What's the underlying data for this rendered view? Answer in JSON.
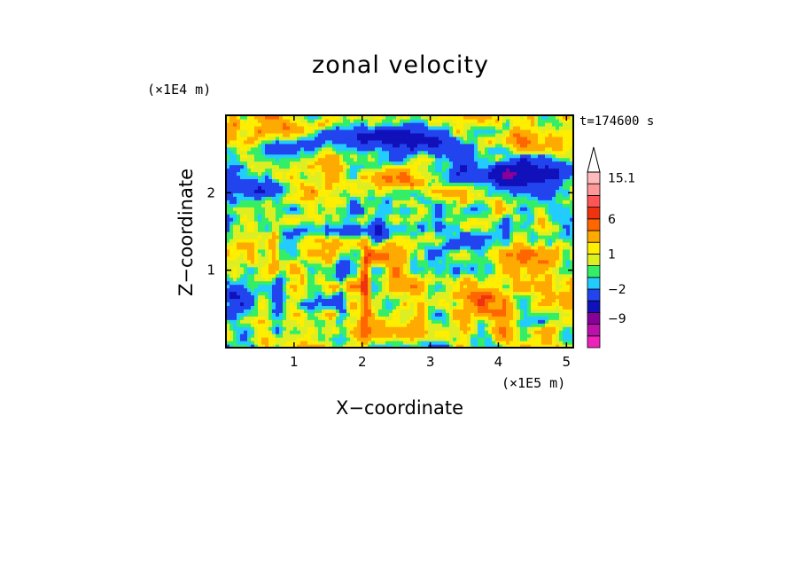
{
  "chart_data": {
    "type": "heatmap",
    "title": "zonal velocity",
    "xlabel": "X−coordinate",
    "ylabel": "Z−coordinate",
    "x_unit": "(×1E5 m)",
    "y_unit": "(×1E4 m)",
    "time_label": "t=174600 s",
    "xlim": [
      0,
      5.1
    ],
    "ylim": [
      0,
      3.0
    ],
    "x_ticks": [
      {
        "v": 1,
        "label": "1"
      },
      {
        "v": 2,
        "label": "2"
      },
      {
        "v": 3,
        "label": "3"
      },
      {
        "v": 4,
        "label": "4"
      },
      {
        "v": 5,
        "label": "5"
      }
    ],
    "y_ticks": [
      {
        "v": 1,
        "label": "1"
      },
      {
        "v": 2,
        "label": "2"
      }
    ],
    "colorbar": {
      "colors": [
        "#ee22bb",
        "#bb11aa",
        "#880099",
        "#1111bb",
        "#2244ee",
        "#22ccff",
        "#33ee66",
        "#ddee22",
        "#ffee00",
        "#ffaa00",
        "#ff6600",
        "#ee3311",
        "#ff5555",
        "#ff9999",
        "#ffbbbb"
      ],
      "extend_max_color": "#ffffff",
      "labels": [
        {
          "index": 2,
          "text": "−9"
        },
        {
          "index": 4.5,
          "text": "−2"
        },
        {
          "index": 7.5,
          "text": "1"
        },
        {
          "index": 10.5,
          "text": "6"
        },
        {
          "index": 14,
          "text": "15.1"
        }
      ]
    },
    "field_levels": [
      -12,
      -9,
      -5,
      -2,
      -1,
      0,
      1,
      2,
      4,
      6,
      9
    ],
    "field_level_colors": [
      "#ee22bb",
      "#880099",
      "#1111bb",
      "#2244ee",
      "#22ccff",
      "#33ee66",
      "#ddee22",
      "#ffee00",
      "#ffaa00",
      "#ff6600",
      "#ee3311",
      "#ff5555"
    ]
  }
}
